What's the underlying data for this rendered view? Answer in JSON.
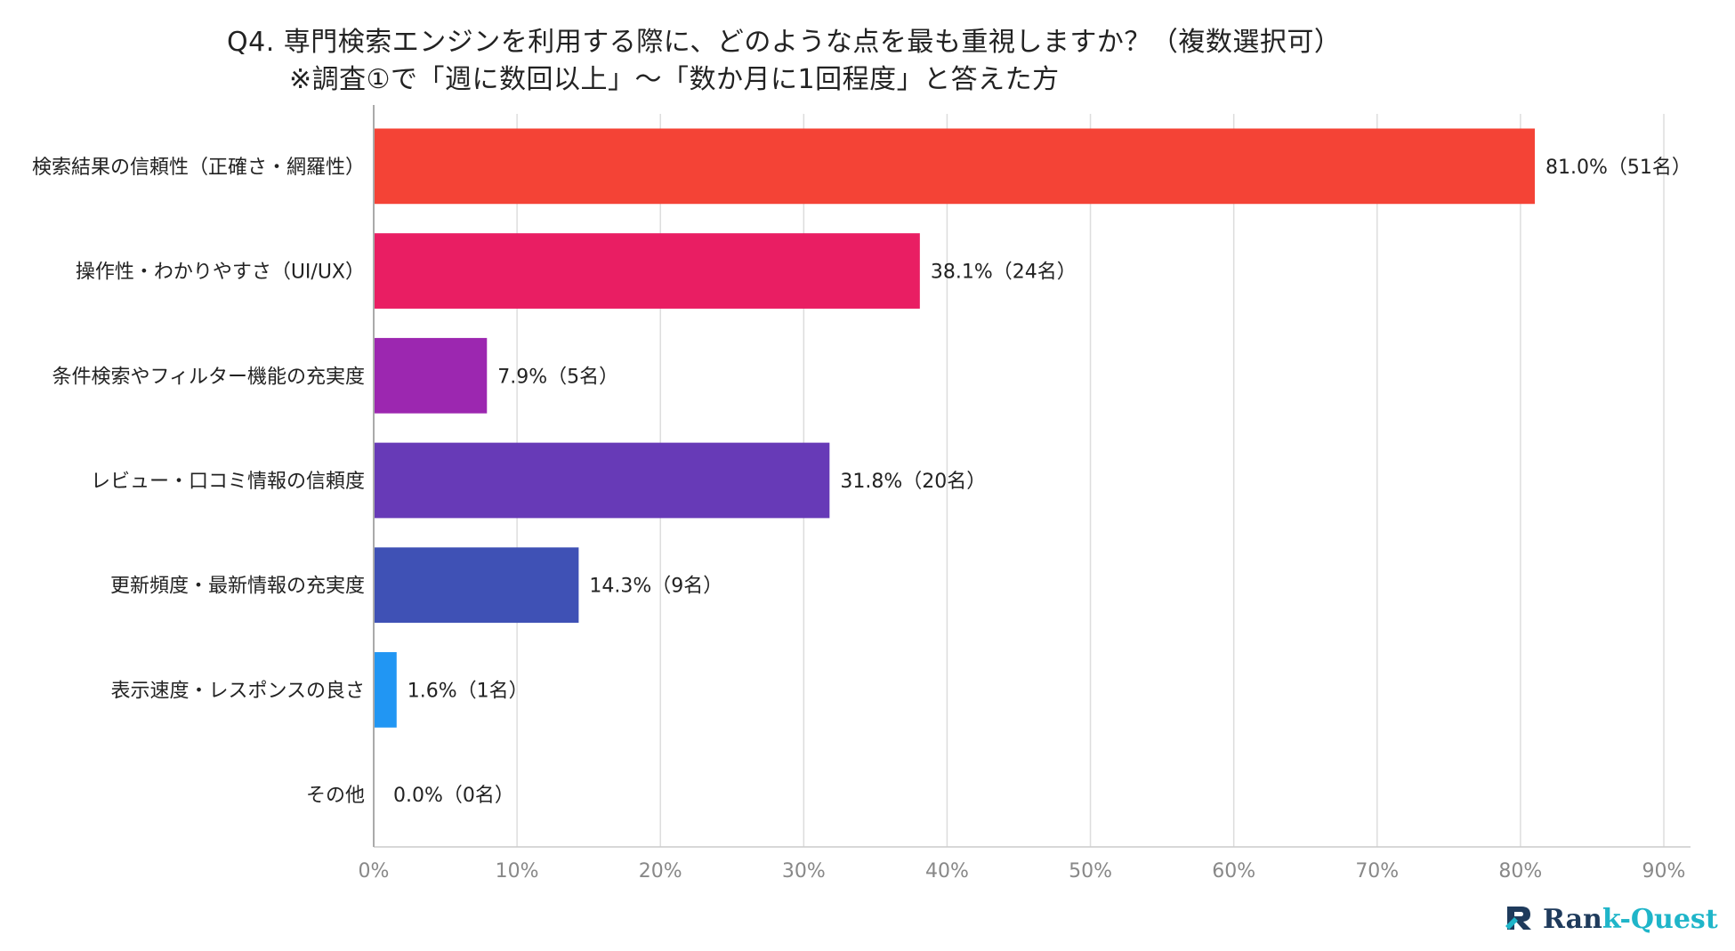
{
  "chart_data": {
    "type": "bar",
    "orientation": "horizontal",
    "title": "Q4. 専門検索エンジンを利用する際に、どのような点を最も重視しますか？（複数選択可）",
    "subtitle": "※調査①で「週に数回以上」～「数か月に1回程度」と答えた方",
    "categories": [
      "検索結果の信頼性（正確さ・網羅性）",
      "操作性・わかりやすさ（UI/UX）",
      "条件検索やフィルター機能の充実度",
      "レビュー・口コミ情報の信頼度",
      "更新頻度・最新情報の充実度",
      "表示速度・レスポンスの良さ",
      "その他"
    ],
    "values": [
      81.0,
      38.1,
      7.9,
      31.8,
      14.3,
      1.6,
      0.0
    ],
    "value_labels": [
      "81.0%（51名）",
      "38.1%（24名）",
      "7.9%（5名）",
      "31.8%（20名）",
      "14.3%（9名）",
      "1.6%（1名）",
      "0.0%（0名）"
    ],
    "colors": [
      "#f44336",
      "#e91e63",
      "#9c27b0",
      "#673ab7",
      "#3f51b5",
      "#2196f3",
      "#00bcd4"
    ],
    "xlim": [
      0,
      90
    ],
    "xticks": [
      0,
      10,
      20,
      30,
      40,
      50,
      60,
      70,
      80,
      90
    ],
    "xtick_labels": [
      "0%",
      "10%",
      "20%",
      "30%",
      "40%",
      "50%",
      "60%",
      "70%",
      "80%",
      "90%"
    ],
    "grid": true,
    "legend": "none"
  },
  "logo": {
    "text_main": "Ran",
    "text_accent": "k-Quest",
    "icon": "rank-quest-logo-icon"
  }
}
